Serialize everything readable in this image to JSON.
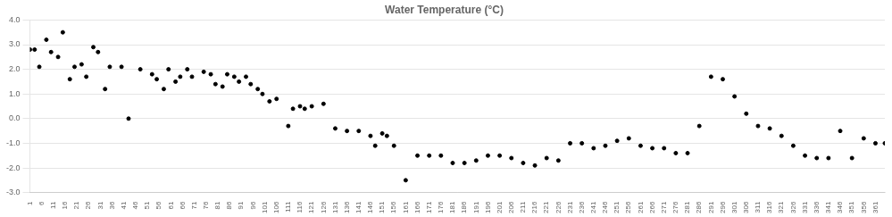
{
  "chart_data": {
    "type": "scatter",
    "title": "Water Temperature (°C)",
    "x": [
      1,
      3,
      5,
      8,
      10,
      13,
      15,
      18,
      20,
      23,
      25,
      28,
      30,
      33,
      35,
      40,
      43,
      48,
      53,
      55,
      58,
      60,
      63,
      65,
      68,
      70,
      75,
      78,
      80,
      83,
      85,
      88,
      90,
      93,
      95,
      98,
      100,
      103,
      106,
      111,
      113,
      116,
      118,
      121,
      126,
      131,
      136,
      141,
      146,
      148,
      151,
      153,
      156,
      161,
      166,
      171,
      176,
      181,
      186,
      191,
      196,
      201,
      206,
      211,
      216,
      221,
      226,
      231,
      236,
      241,
      246,
      251,
      256,
      261,
      266,
      271,
      276,
      281,
      286,
      291,
      296,
      301,
      306,
      311,
      316,
      321,
      326,
      331,
      336,
      341,
      346,
      351,
      356,
      361,
      365
    ],
    "values": [
      2.8,
      2.8,
      2.1,
      3.2,
      2.7,
      2.5,
      3.5,
      1.6,
      2.1,
      2.2,
      1.7,
      2.9,
      2.7,
      1.2,
      2.1,
      2.1,
      0.0,
      2.0,
      1.8,
      1.6,
      1.2,
      2.0,
      1.5,
      1.7,
      2.0,
      1.7,
      1.9,
      1.8,
      1.4,
      1.3,
      1.8,
      1.7,
      1.5,
      1.7,
      1.4,
      1.2,
      1.0,
      0.7,
      0.8,
      -0.3,
      0.4,
      0.5,
      0.4,
      0.5,
      0.6,
      -0.4,
      -0.5,
      -0.5,
      -0.7,
      -1.1,
      -0.6,
      -0.7,
      -1.1,
      -2.5,
      -1.5,
      -1.5,
      -1.5,
      -1.8,
      -1.8,
      -1.7,
      -1.5,
      -1.5,
      -1.6,
      -1.8,
      -1.9,
      -1.6,
      -1.7,
      -1.0,
      -1.0,
      -1.2,
      -1.1,
      -0.9,
      -0.8,
      -1.1,
      -1.2,
      -1.2,
      -1.4,
      -1.4,
      -0.3,
      1.7,
      1.6,
      0.9,
      0.2,
      -0.3,
      -0.4,
      -0.7,
      -1.1,
      -1.5,
      -1.6,
      -1.6,
      -0.5,
      -1.6,
      -0.8,
      -1.0,
      -1.0
    ],
    "color": "#000000",
    "xlim": [
      1,
      365
    ],
    "xticks": [
      1,
      6,
      11,
      16,
      21,
      26,
      31,
      36,
      41,
      46,
      51,
      56,
      61,
      66,
      71,
      76,
      81,
      86,
      91,
      96,
      101,
      106,
      111,
      116,
      121,
      126,
      131,
      136,
      141,
      146,
      151,
      156,
      161,
      166,
      171,
      176,
      181,
      186,
      191,
      196,
      201,
      206,
      211,
      216,
      221,
      226,
      231,
      236,
      241,
      246,
      251,
      256,
      261,
      266,
      271,
      276,
      281,
      286,
      291,
      296,
      301,
      306,
      311,
      316,
      321,
      326,
      331,
      336,
      341,
      346,
      351,
      356,
      361
    ],
    "ylim": [
      -3.0,
      4.0
    ],
    "yticks": [
      {
        "value": -3.0,
        "label": "-3.0"
      },
      {
        "value": -2.0,
        "label": "-2.0"
      },
      {
        "value": -1.0,
        "label": "-1.0"
      },
      {
        "value": 0.0,
        "label": "0.0"
      },
      {
        "value": 1.0,
        "label": "1.0"
      },
      {
        "value": 2.0,
        "label": "2.0"
      },
      {
        "value": 3.0,
        "label": "3.0"
      },
      {
        "value": 4.0,
        "label": "4.0"
      }
    ],
    "grid": "y"
  }
}
